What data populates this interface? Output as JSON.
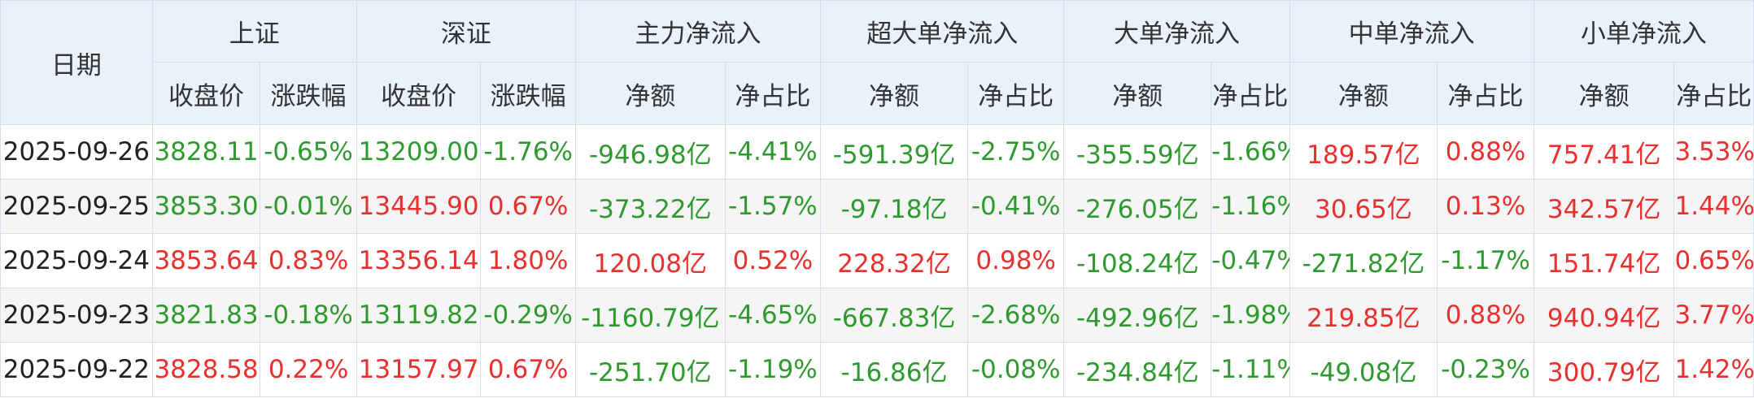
{
  "headers": {
    "date": "日期",
    "groups": [
      "上证",
      "深证",
      "主力净流入",
      "超大单净流入",
      "大单净流入",
      "中单净流入",
      "小单净流入"
    ],
    "sub": [
      "收盘价",
      "涨跌幅",
      "收盘价",
      "涨跌幅",
      "净额",
      "净占比",
      "净额",
      "净占比",
      "净额",
      "净占比",
      "净额",
      "净占比",
      "净额",
      "净占比"
    ]
  },
  "rows": [
    {
      "date": "2025-09-26",
      "cells": [
        "3828.11",
        "-0.65%",
        "13209.00",
        "-1.76%",
        "-946.98亿",
        "-4.41%",
        "-591.39亿",
        "-2.75%",
        "-355.59亿",
        "-1.66%",
        "189.57亿",
        "0.88%",
        "757.41亿",
        "3.53%"
      ],
      "dirs": [
        "down",
        "down",
        "down",
        "down",
        "down",
        "down",
        "down",
        "down",
        "down",
        "down",
        "up",
        "up",
        "up",
        "up"
      ]
    },
    {
      "date": "2025-09-25",
      "cells": [
        "3853.30",
        "-0.01%",
        "13445.90",
        "0.67%",
        "-373.22亿",
        "-1.57%",
        "-97.18亿",
        "-0.41%",
        "-276.05亿",
        "-1.16%",
        "30.65亿",
        "0.13%",
        "342.57亿",
        "1.44%"
      ],
      "dirs": [
        "down",
        "down",
        "up",
        "up",
        "down",
        "down",
        "down",
        "down",
        "down",
        "down",
        "up",
        "up",
        "up",
        "up"
      ]
    },
    {
      "date": "2025-09-24",
      "cells": [
        "3853.64",
        "0.83%",
        "13356.14",
        "1.80%",
        "120.08亿",
        "0.52%",
        "228.32亿",
        "0.98%",
        "-108.24亿",
        "-0.47%",
        "-271.82亿",
        "-1.17%",
        "151.74亿",
        "0.65%"
      ],
      "dirs": [
        "up",
        "up",
        "up",
        "up",
        "up",
        "up",
        "up",
        "up",
        "down",
        "down",
        "down",
        "down",
        "up",
        "up"
      ]
    },
    {
      "date": "2025-09-23",
      "cells": [
        "3821.83",
        "-0.18%",
        "13119.82",
        "-0.29%",
        "-1160.79亿",
        "-4.65%",
        "-667.83亿",
        "-2.68%",
        "-492.96亿",
        "-1.98%",
        "219.85亿",
        "0.88%",
        "940.94亿",
        "3.77%"
      ],
      "dirs": [
        "down",
        "down",
        "down",
        "down",
        "down",
        "down",
        "down",
        "down",
        "down",
        "down",
        "up",
        "up",
        "up",
        "up"
      ]
    },
    {
      "date": "2025-09-22",
      "cells": [
        "3828.58",
        "0.22%",
        "13157.97",
        "0.67%",
        "-251.70亿",
        "-1.19%",
        "-16.86亿",
        "-0.08%",
        "-234.84亿",
        "-1.11%",
        "-49.08亿",
        "-0.23%",
        "300.79亿",
        "1.42%"
      ],
      "dirs": [
        "up",
        "up",
        "up",
        "up",
        "down",
        "down",
        "down",
        "down",
        "down",
        "down",
        "down",
        "down",
        "up",
        "up"
      ]
    }
  ],
  "colors": {
    "up": "#e8302f",
    "down": "#2e9a2e",
    "header_bg": "#e9f1fb",
    "border": "#d4e0ee"
  }
}
